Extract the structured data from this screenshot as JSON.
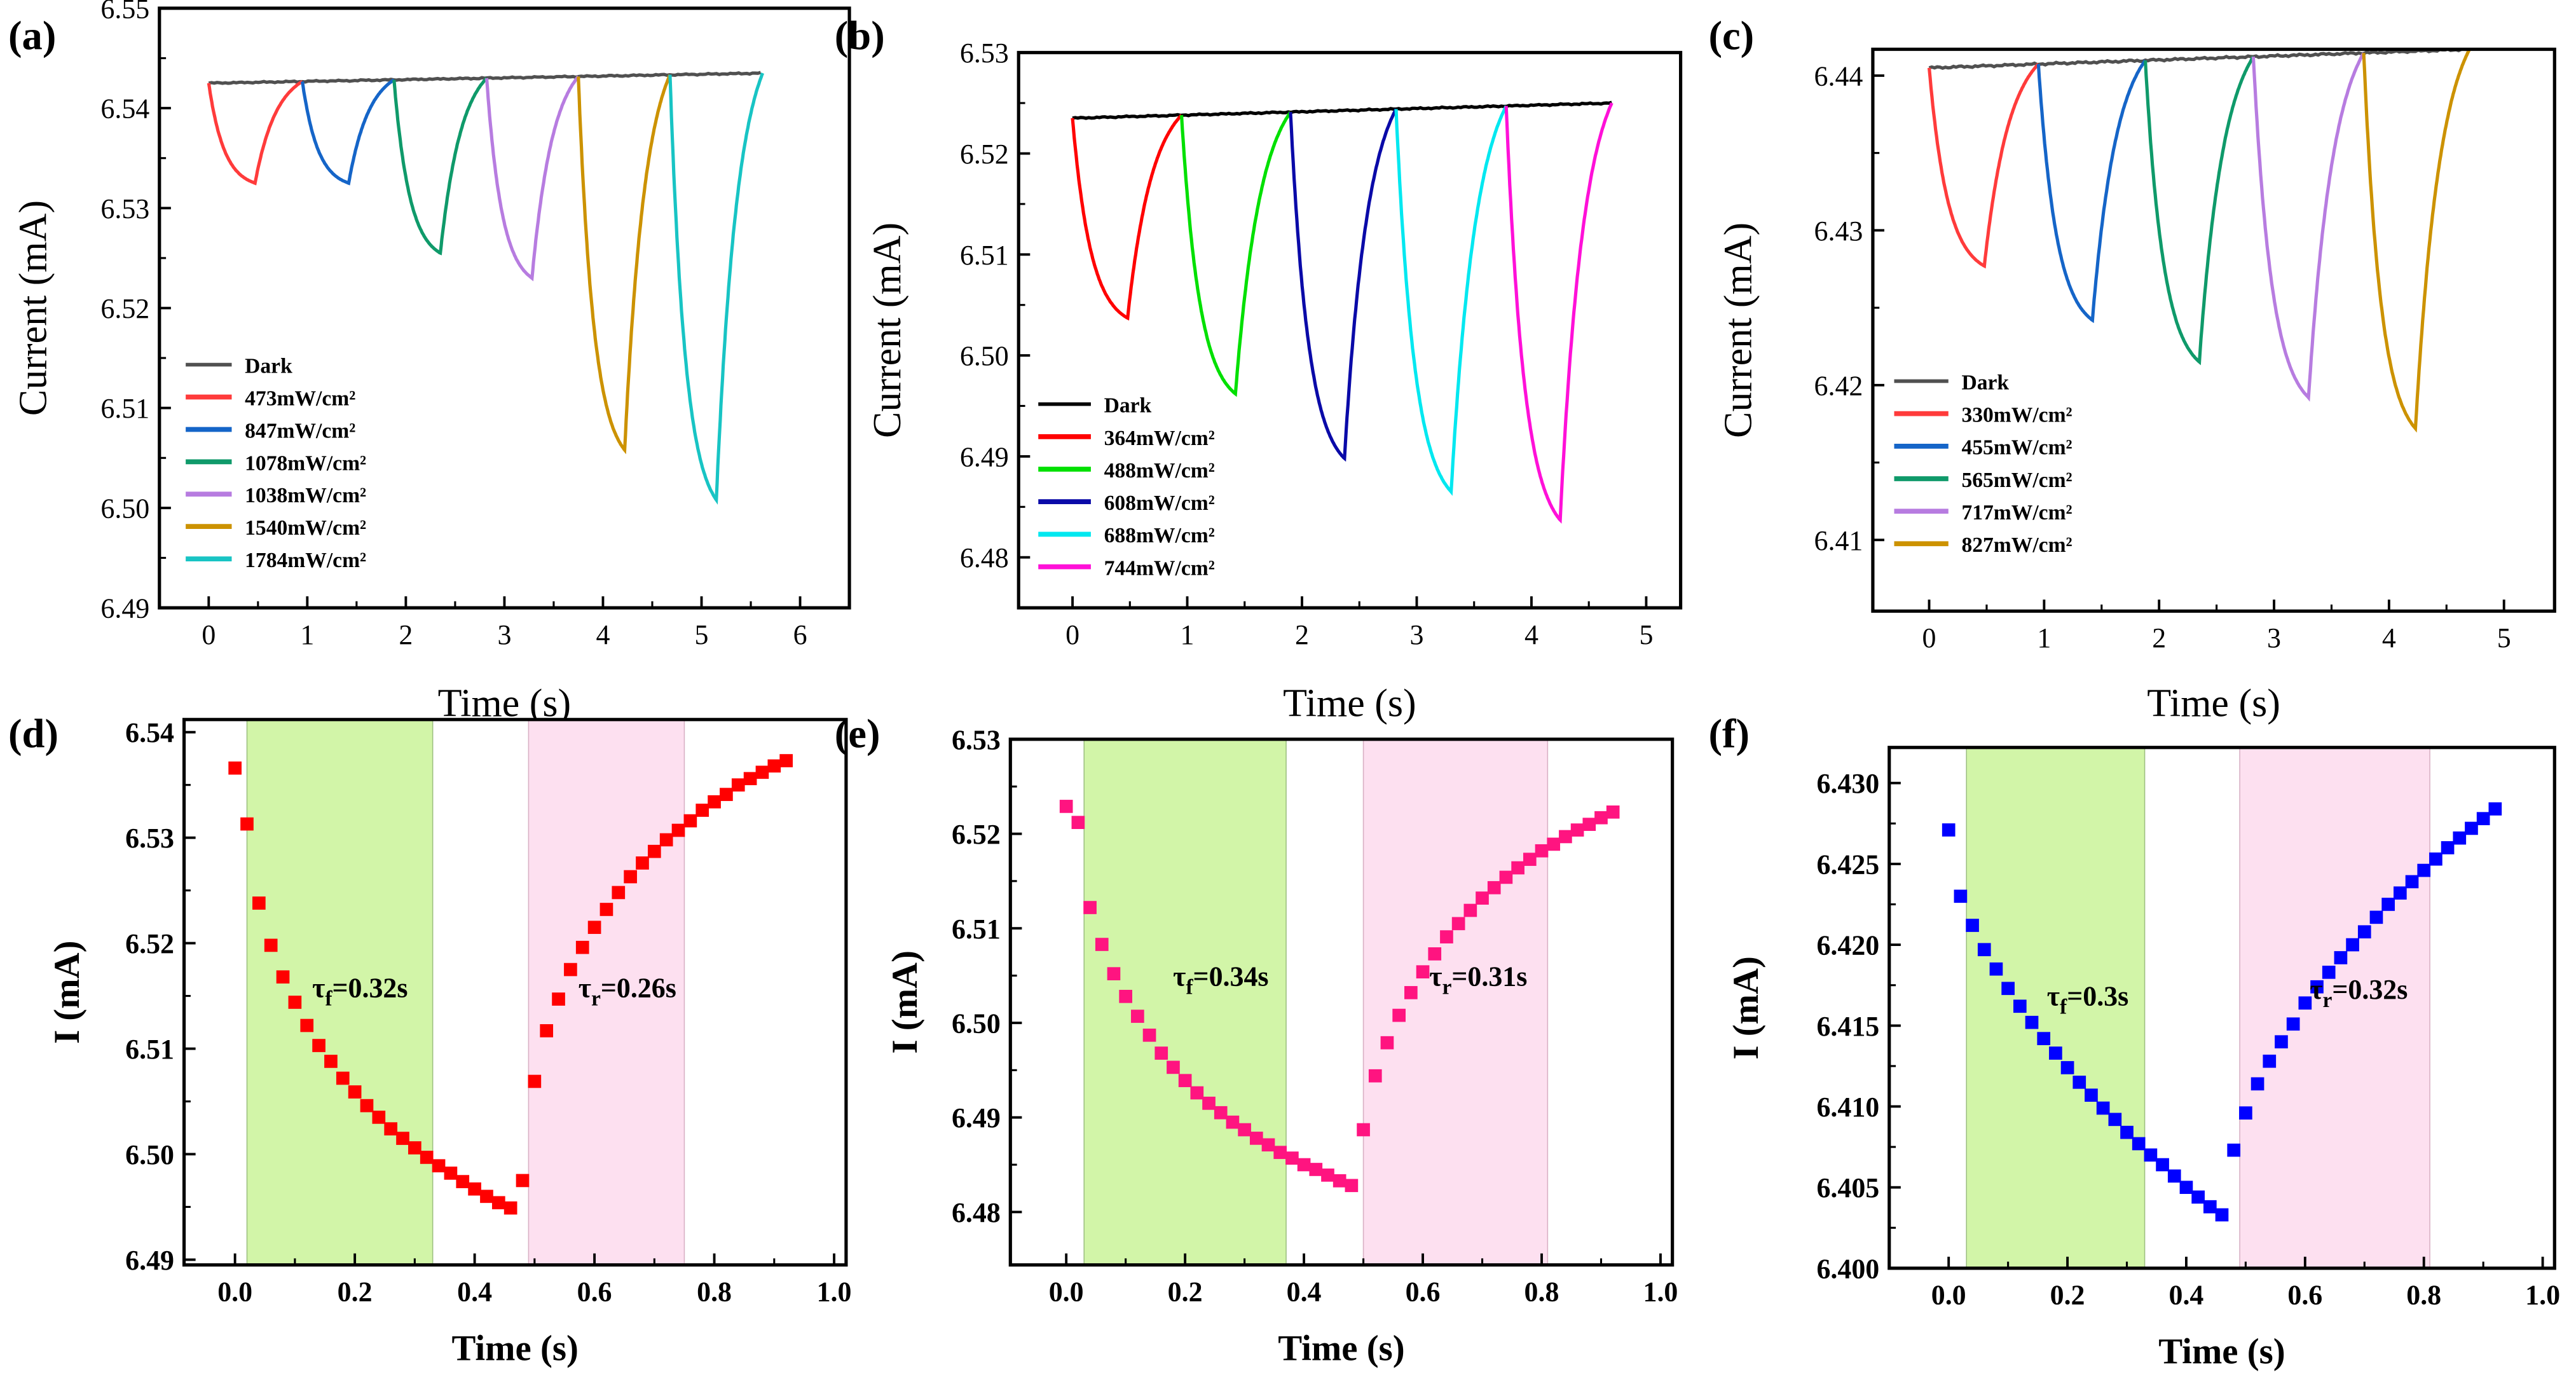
{
  "chart_data": [
    {
      "panel": "(a)",
      "type": "line",
      "xlabel": "Time (s)",
      "ylabel": "Current (mA)",
      "xlim": [
        -0.5,
        6.5
      ],
      "ylim": [
        6.49,
        6.55
      ],
      "xticks": [
        "0",
        "1",
        "2",
        "3",
        "4",
        "5",
        "6"
      ],
      "yticks": [
        "6.49",
        "6.50",
        "6.51",
        "6.52",
        "6.53",
        "6.54",
        "6.55"
      ],
      "dark": {
        "name": "Dark",
        "color": "#505050",
        "start": [
          0,
          6.5425
        ],
        "end": [
          5.6,
          6.5435
        ]
      },
      "series": [
        {
          "name": "473mW/cm²",
          "color": "#ff3b3b",
          "cycle": [
            0.0,
            0.47,
            6.5325,
            0.95
          ]
        },
        {
          "name": "847mW/cm²",
          "color": "#1565c8",
          "cycle": [
            0.95,
            1.42,
            6.5325,
            1.88
          ]
        },
        {
          "name": "1078mW/cm²",
          "color": "#0f9a6a",
          "cycle": [
            1.88,
            2.35,
            6.5255,
            2.82
          ]
        },
        {
          "name": "1038mW/cm²",
          "color": "#b77ce0",
          "cycle": [
            2.82,
            3.28,
            6.523,
            3.75
          ]
        },
        {
          "name": "1540mW/cm²",
          "color": "#cc9200",
          "cycle": [
            3.75,
            4.22,
            6.5058,
            4.68
          ]
        },
        {
          "name": "1784mW/cm²",
          "color": "#18c4c4",
          "cycle": [
            4.68,
            5.15,
            6.5008,
            5.62
          ]
        }
      ]
    },
    {
      "panel": "(b)",
      "type": "line",
      "xlabel": "Time (s)",
      "ylabel": "Current (mA)",
      "xlim": [
        -0.47,
        5.3
      ],
      "ylim": [
        6.475,
        6.53
      ],
      "xticks": [
        "0",
        "1",
        "2",
        "3",
        "4",
        "5"
      ],
      "yticks": [
        "6.48",
        "6.49",
        "6.50",
        "6.51",
        "6.52",
        "6.53"
      ],
      "dark": {
        "name": "Dark",
        "color": "#000000",
        "start": [
          0,
          6.5235
        ],
        "end": [
          4.7,
          6.525
        ]
      },
      "series": [
        {
          "name": "364mW/cm²",
          "color": "#ff0000",
          "cycle": [
            0.0,
            0.48,
            6.5037,
            0.95
          ]
        },
        {
          "name": "488mW/cm²",
          "color": "#00e000",
          "cycle": [
            0.95,
            1.42,
            6.4962,
            1.9
          ]
        },
        {
          "name": "608mW/cm²",
          "color": "#0a0aa8",
          "cycle": [
            1.9,
            2.37,
            6.4898,
            2.82
          ]
        },
        {
          "name": "688mW/cm²",
          "color": "#00e8f0",
          "cycle": [
            2.82,
            3.3,
            6.4865,
            3.78
          ]
        },
        {
          "name": "744mW/cm²",
          "color": "#ff10d8",
          "cycle": [
            3.78,
            4.25,
            6.4837,
            4.7
          ]
        }
      ]
    },
    {
      "panel": "(c)",
      "type": "line",
      "xlabel": "Time (s)",
      "ylabel": "Current (mA)",
      "xlim": [
        -0.49,
        5.44
      ],
      "ylim": [
        6.4054,
        6.4417
      ],
      "xticks": [
        "0",
        "1",
        "2",
        "3",
        "4",
        "5"
      ],
      "yticks": [
        "6.41",
        "6.42",
        "6.43",
        "6.44"
      ],
      "dark": {
        "name": "Dark",
        "color": "#505050",
        "start": [
          0,
          6.4405
        ],
        "end": [
          4.7,
          6.4417
        ]
      },
      "series": [
        {
          "name": "330mW/cm²",
          "color": "#ff3b3b",
          "cycle": [
            0.0,
            0.48,
            6.4277,
            0.95
          ]
        },
        {
          "name": "455mW/cm²",
          "color": "#1565c8",
          "cycle": [
            0.95,
            1.42,
            6.4242,
            1.88
          ]
        },
        {
          "name": "565mW/cm²",
          "color": "#0f9a6a",
          "cycle": [
            1.88,
            2.35,
            6.4215,
            2.82
          ]
        },
        {
          "name": "717mW/cm²",
          "color": "#b77ce0",
          "cycle": [
            2.82,
            3.3,
            6.4192,
            3.78
          ]
        },
        {
          "name": "827mW/cm²",
          "color": "#cc9200",
          "cycle": [
            3.78,
            4.23,
            6.4172,
            4.7
          ]
        }
      ]
    },
    {
      "panel": "(d)",
      "type": "scatter",
      "xlabel": "Time (s)",
      "ylabel": "I (mA)",
      "xlim": [
        -0.085,
        1.02
      ],
      "ylim": [
        6.4895,
        6.5412
      ],
      "xticks": [
        "0.0",
        "0.2",
        "0.4",
        "0.6",
        "0.8",
        "1.0"
      ],
      "yticks": [
        "6.49",
        "6.50",
        "6.51",
        "6.52",
        "6.53",
        "6.54"
      ],
      "color": "#ff0000",
      "fall_shade": [
        0.02,
        0.33
      ],
      "rise_shade": [
        0.49,
        0.75
      ],
      "tau_f": {
        "symbol": "τ",
        "sub": "f",
        "value": "=0.32s"
      },
      "tau_r": {
        "symbol": "τ",
        "sub": "r",
        "value": "=0.26s"
      },
      "x": [
        0,
        0.02,
        0.04,
        0.06,
        0.08,
        0.1,
        0.12,
        0.14,
        0.16,
        0.18,
        0.2,
        0.22,
        0.24,
        0.26,
        0.28,
        0.3,
        0.32,
        0.34,
        0.36,
        0.38,
        0.4,
        0.42,
        0.44,
        0.46,
        0.48,
        0.5,
        0.52,
        0.54,
        0.56,
        0.58,
        0.6,
        0.62,
        0.64,
        0.66,
        0.68,
        0.7,
        0.72,
        0.74,
        0.76,
        0.78,
        0.8,
        0.82,
        0.84,
        0.86,
        0.88,
        0.9,
        0.92
      ],
      "y": [
        6.5366,
        6.5313,
        6.5238,
        6.5198,
        6.5168,
        6.5144,
        6.5122,
        6.5103,
        6.5088,
        6.5072,
        6.5059,
        6.5046,
        6.5035,
        6.5024,
        6.5015,
        6.5006,
        6.4997,
        6.4989,
        6.4982,
        6.4974,
        6.4967,
        6.496,
        6.4954,
        6.4949,
        6.4975,
        6.5069,
        6.5117,
        6.5147,
        6.5175,
        6.5196,
        6.5215,
        6.5232,
        6.5248,
        6.5263,
        6.5276,
        6.5287,
        6.5298,
        6.5307,
        6.5316,
        6.5326,
        6.5334,
        6.5341,
        6.535,
        6.5356,
        6.5362,
        6.5368,
        6.5373
      ]
    },
    {
      "panel": "(e)",
      "type": "scatter",
      "xlabel": "Time (s)",
      "ylabel": "I (mA)",
      "xlim": [
        -0.094,
        1.02
      ],
      "ylim": [
        6.4744,
        6.53
      ],
      "xticks": [
        "0.0",
        "0.2",
        "0.4",
        "0.6",
        "0.8",
        "1.0"
      ],
      "yticks": [
        "6.48",
        "6.49",
        "6.50",
        "6.51",
        "6.52",
        "6.53"
      ],
      "color": "#ff1480",
      "fall_shade": [
        0.03,
        0.37
      ],
      "rise_shade": [
        0.5,
        0.81
      ],
      "tau_f": {
        "symbol": "τ",
        "sub": "f",
        "value": "=0.34s"
      },
      "tau_r": {
        "symbol": "τ",
        "sub": "r",
        "value": "=0.31s"
      },
      "x": [
        0,
        0.02,
        0.04,
        0.06,
        0.08,
        0.1,
        0.12,
        0.14,
        0.16,
        0.18,
        0.2,
        0.22,
        0.24,
        0.26,
        0.28,
        0.3,
        0.32,
        0.34,
        0.36,
        0.38,
        0.4,
        0.42,
        0.44,
        0.46,
        0.48,
        0.5,
        0.52,
        0.54,
        0.56,
        0.58,
        0.6,
        0.62,
        0.64,
        0.66,
        0.68,
        0.7,
        0.72,
        0.74,
        0.76,
        0.78,
        0.8,
        0.82,
        0.84,
        0.86,
        0.88,
        0.9,
        0.92
      ],
      "y": [
        6.5229,
        6.5212,
        6.5122,
        6.5083,
        6.5052,
        6.5028,
        6.5007,
        6.4987,
        6.4968,
        6.4953,
        6.4939,
        6.4926,
        6.4915,
        6.4905,
        6.4895,
        6.4887,
        6.4878,
        6.4871,
        6.4863,
        6.4857,
        6.485,
        6.4845,
        6.4839,
        6.4833,
        6.4828,
        6.4887,
        6.4944,
        6.4979,
        6.5008,
        6.5032,
        6.5054,
        6.5073,
        6.5091,
        6.5105,
        6.5119,
        6.5132,
        6.5143,
        6.5154,
        6.5164,
        6.5173,
        6.5182,
        6.5189,
        6.5197,
        6.5204,
        6.521,
        6.5217,
        6.5223
      ]
    },
    {
      "panel": "(f)",
      "type": "scatter",
      "xlabel": "Time (s)",
      "ylabel": "I (mA)",
      "xlim": [
        -0.1,
        1.02
      ],
      "ylim": [
        6.4,
        6.4322
      ],
      "xticks": [
        "0.0",
        "0.2",
        "0.4",
        "0.6",
        "0.8",
        "1.0"
      ],
      "yticks": [
        "6.400",
        "6.405",
        "6.410",
        "6.415",
        "6.420",
        "6.425",
        "6.430"
      ],
      "color": "#0000ff",
      "fall_shade": [
        0.03,
        0.33
      ],
      "rise_shade": [
        0.49,
        0.81
      ],
      "tau_f": {
        "symbol": "τ",
        "sub": "f",
        "value": "=0.3s"
      },
      "tau_r": {
        "symbol": "τ",
        "sub": "r",
        "value": "=0.32s"
      },
      "x": [
        0,
        0.02,
        0.04,
        0.06,
        0.08,
        0.1,
        0.12,
        0.14,
        0.16,
        0.18,
        0.2,
        0.22,
        0.24,
        0.26,
        0.28,
        0.3,
        0.32,
        0.34,
        0.36,
        0.38,
        0.4,
        0.42,
        0.44,
        0.46,
        0.48,
        0.5,
        0.52,
        0.54,
        0.56,
        0.58,
        0.6,
        0.62,
        0.64,
        0.66,
        0.68,
        0.7,
        0.72,
        0.74,
        0.76,
        0.78,
        0.8,
        0.82,
        0.84,
        0.86,
        0.88,
        0.9,
        0.92
      ],
      "y": [
        6.4271,
        6.423,
        6.4212,
        6.4197,
        6.4185,
        6.4173,
        6.4162,
        6.4152,
        6.4142,
        6.4133,
        6.4124,
        6.4115,
        6.4107,
        6.4099,
        6.4092,
        6.4084,
        6.4077,
        6.407,
        6.4064,
        6.4057,
        6.405,
        6.4044,
        6.4038,
        6.4033,
        6.4073,
        6.4096,
        6.4114,
        6.4128,
        6.414,
        6.4151,
        6.4164,
        6.4174,
        6.4183,
        6.4192,
        6.42,
        6.4208,
        6.4217,
        6.4225,
        6.4232,
        6.4239,
        6.4246,
        6.4253,
        6.426,
        6.4266,
        6.4272,
        6.4278,
        6.4284
      ]
    }
  ]
}
